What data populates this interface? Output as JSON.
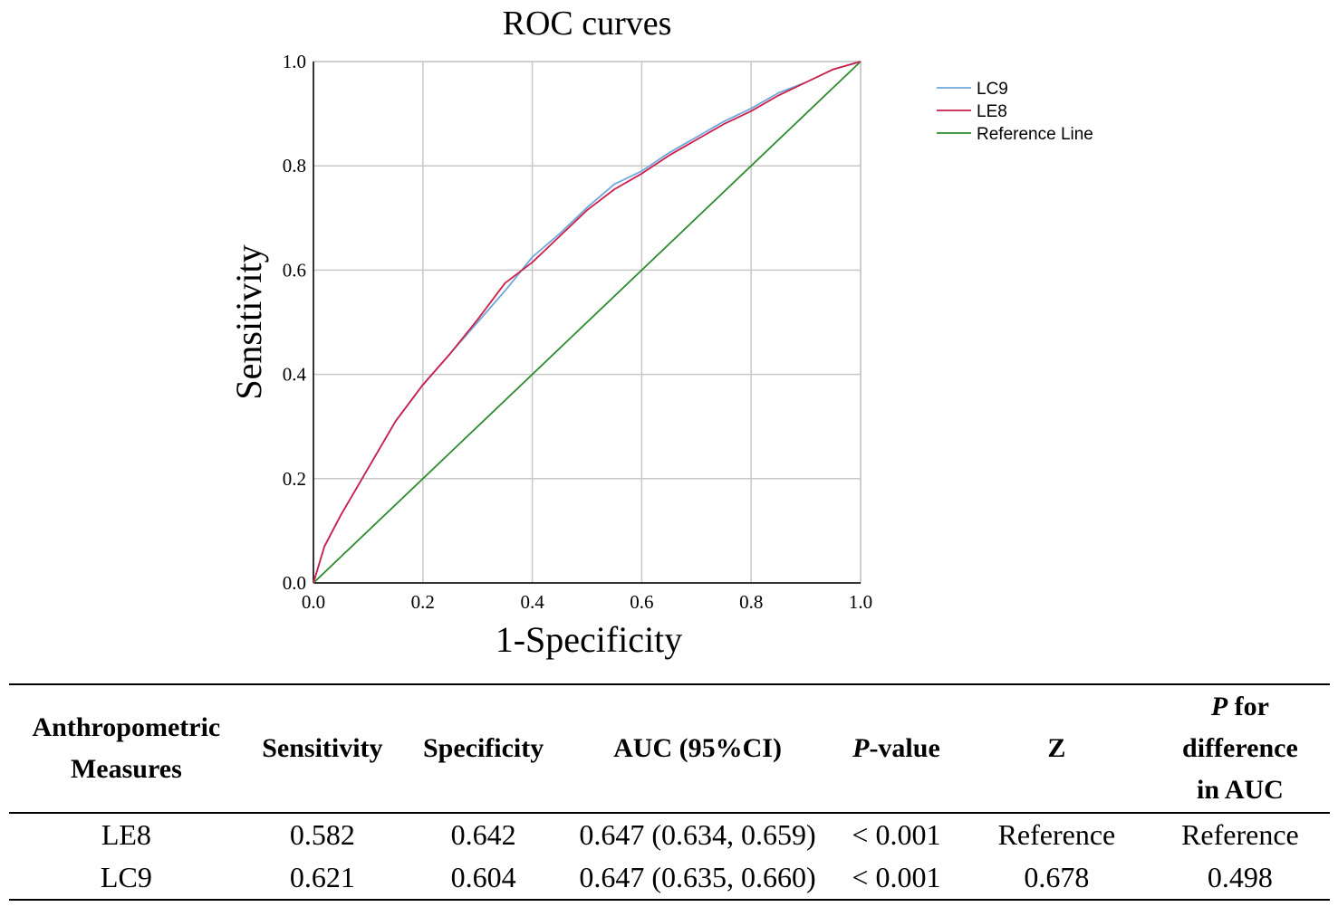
{
  "chart_data": {
    "type": "line",
    "title": "ROC curves",
    "xlabel": "1-Specificity",
    "ylabel": "Sensitivity",
    "xlim": [
      0,
      1
    ],
    "ylim": [
      0,
      1
    ],
    "xticks": [
      "0.0",
      "0.2",
      "0.4",
      "0.6",
      "0.8",
      "1.0"
    ],
    "yticks": [
      "0.0",
      "0.2",
      "0.4",
      "0.6",
      "0.8",
      "1.0"
    ],
    "grid": true,
    "legend_position": "top-right-outside",
    "series": [
      {
        "name": "LC9",
        "color": "#6fa8dc",
        "x": [
          0,
          0.02,
          0.05,
          0.1,
          0.15,
          0.2,
          0.25,
          0.3,
          0.35,
          0.4,
          0.45,
          0.5,
          0.55,
          0.6,
          0.65,
          0.7,
          0.75,
          0.8,
          0.85,
          0.9,
          0.95,
          1.0
        ],
        "y": [
          0,
          0.07,
          0.13,
          0.22,
          0.31,
          0.38,
          0.44,
          0.5,
          0.56,
          0.625,
          0.67,
          0.72,
          0.765,
          0.79,
          0.825,
          0.855,
          0.885,
          0.91,
          0.94,
          0.96,
          0.985,
          1.0
        ]
      },
      {
        "name": "LE8",
        "color": "#cc1f4a",
        "x": [
          0,
          0.02,
          0.05,
          0.1,
          0.15,
          0.2,
          0.25,
          0.3,
          0.35,
          0.4,
          0.45,
          0.5,
          0.55,
          0.6,
          0.65,
          0.7,
          0.75,
          0.8,
          0.85,
          0.9,
          0.95,
          1.0
        ],
        "y": [
          0,
          0.07,
          0.13,
          0.22,
          0.31,
          0.38,
          0.44,
          0.505,
          0.575,
          0.615,
          0.665,
          0.715,
          0.755,
          0.785,
          0.82,
          0.85,
          0.88,
          0.905,
          0.935,
          0.96,
          0.985,
          1.0
        ]
      },
      {
        "name": "Reference Line",
        "color": "#2e8b2e",
        "x": [
          0,
          1
        ],
        "y": [
          0,
          1
        ]
      }
    ]
  },
  "table": {
    "headers": {
      "measures": [
        "Anthropometric",
        "Measures"
      ],
      "sensitivity": "Sensitivity",
      "specificity": "Specificity",
      "auc": "AUC (95%CI)",
      "pvalue_p": "P",
      "pvalue_rest": "-value",
      "z": "Z",
      "pdiff_p": "P",
      "pdiff_rest1": " for",
      "pdiff_rest2": "difference",
      "pdiff_rest3": "in AUC"
    },
    "rows": [
      {
        "measure": "LE8",
        "sensitivity": "0.582",
        "specificity": "0.642",
        "auc": "0.647 (0.634, 0.659)",
        "pvalue": "< 0.001",
        "z": "Reference",
        "pdiff": "Reference"
      },
      {
        "measure": "LC9",
        "sensitivity": "0.621",
        "specificity": "0.604",
        "auc": "0.647 (0.635, 0.660)",
        "pvalue": "< 0.001",
        "z": "0.678",
        "pdiff": "0.498"
      }
    ]
  }
}
